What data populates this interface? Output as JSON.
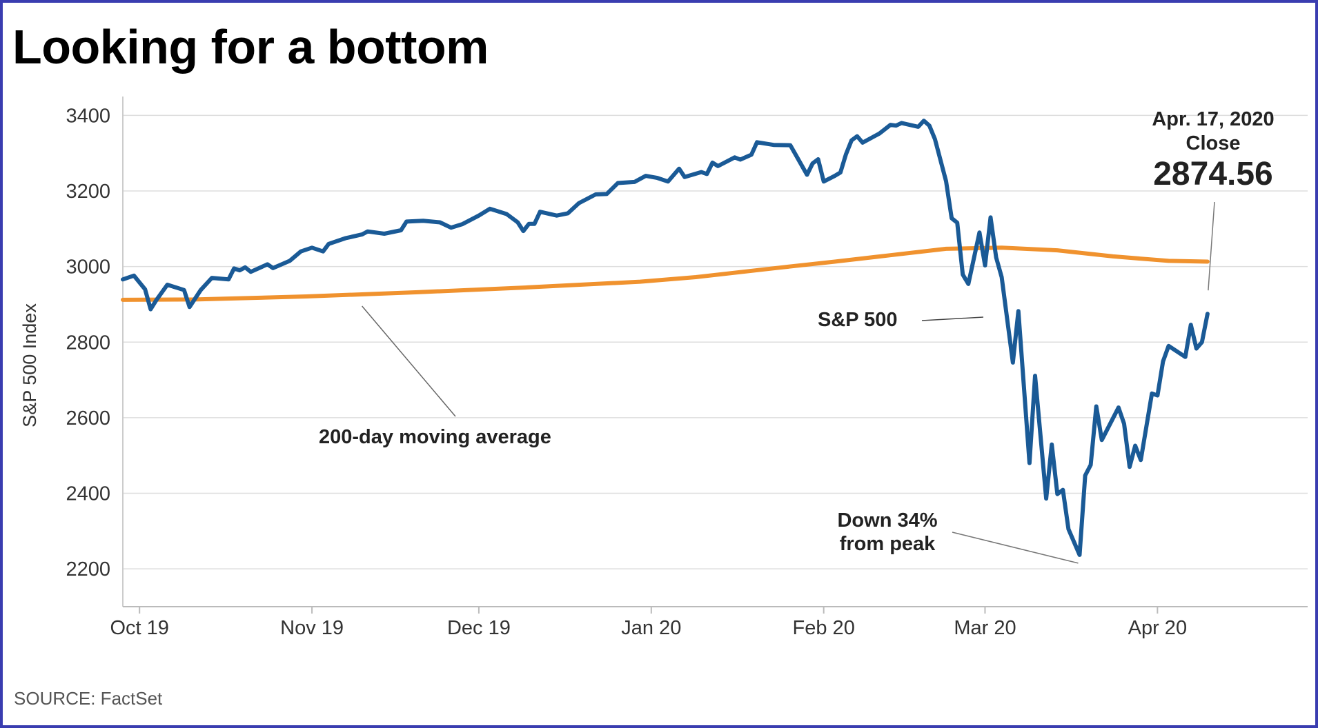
{
  "chart_data": {
    "type": "line",
    "title": "Looking for a bottom",
    "ylabel": "S&P 500 Index",
    "xlabel": "",
    "ylim": [
      2100,
      3450
    ],
    "yticks": [
      2200,
      2400,
      2600,
      2800,
      3000,
      3200,
      3400
    ],
    "x_tick_labels": [
      {
        "label": "Oct 19",
        "x": 0
      },
      {
        "label": "Nov 19",
        "x": 31
      },
      {
        "label": "Dec 19",
        "x": 61
      },
      {
        "label": "Jan 20",
        "x": 92
      },
      {
        "label": "Feb 20",
        "x": 123
      },
      {
        "label": "Mar 20",
        "x": 152
      },
      {
        "label": "Apr 20",
        "x": 183
      }
    ],
    "xlim": [
      -3,
      210
    ],
    "series": [
      {
        "name": "S&P 500",
        "color": "#1a5a96",
        "points": [
          [
            -3,
            2966
          ],
          [
            -1,
            2976
          ],
          [
            1,
            2940
          ],
          [
            2,
            2887
          ],
          [
            3,
            2911
          ],
          [
            5,
            2952
          ],
          [
            8,
            2938
          ],
          [
            9,
            2893
          ],
          [
            11,
            2938
          ],
          [
            13,
            2970
          ],
          [
            16,
            2966
          ],
          [
            17,
            2995
          ],
          [
            18,
            2990
          ],
          [
            19,
            2998
          ],
          [
            20,
            2986
          ],
          [
            23,
            3006
          ],
          [
            24,
            2996
          ],
          [
            27,
            3015
          ],
          [
            29,
            3040
          ],
          [
            31,
            3050
          ],
          [
            33,
            3040
          ],
          [
            34,
            3060
          ],
          [
            37,
            3075
          ],
          [
            40,
            3085
          ],
          [
            41,
            3093
          ],
          [
            44,
            3087
          ],
          [
            47,
            3096
          ],
          [
            48,
            3119
          ],
          [
            51,
            3121
          ],
          [
            54,
            3117
          ],
          [
            56,
            3103
          ],
          [
            58,
            3112
          ],
          [
            61,
            3135
          ],
          [
            63,
            3153
          ],
          [
            66,
            3139
          ],
          [
            68,
            3117
          ],
          [
            69,
            3094
          ],
          [
            70,
            3113
          ],
          [
            71,
            3113
          ],
          [
            72,
            3145
          ],
          [
            75,
            3135
          ],
          [
            77,
            3141
          ],
          [
            79,
            3168
          ],
          [
            82,
            3191
          ],
          [
            84,
            3192
          ],
          [
            86,
            3221
          ],
          [
            89,
            3224
          ],
          [
            91,
            3240
          ],
          [
            93,
            3235
          ],
          [
            95,
            3225
          ],
          [
            97,
            3259
          ],
          [
            98,
            3237
          ],
          [
            101,
            3250
          ],
          [
            102,
            3245
          ],
          [
            103,
            3275
          ],
          [
            104,
            3266
          ],
          [
            107,
            3289
          ],
          [
            108,
            3283
          ],
          [
            110,
            3296
          ],
          [
            111,
            3329
          ],
          [
            114,
            3322
          ],
          [
            117,
            3321
          ],
          [
            118,
            3295
          ],
          [
            120,
            3243
          ],
          [
            121,
            3273
          ],
          [
            122,
            3284
          ],
          [
            123,
            3225
          ],
          [
            125,
            3240
          ],
          [
            126,
            3249
          ],
          [
            127,
            3297
          ],
          [
            128,
            3334
          ],
          [
            129,
            3345
          ],
          [
            130,
            3328
          ],
          [
            133,
            3352
          ],
          [
            135,
            3375
          ],
          [
            136,
            3373
          ],
          [
            137,
            3380
          ],
          [
            140,
            3370
          ],
          [
            141,
            3386
          ],
          [
            142,
            3373
          ],
          [
            143,
            3337
          ],
          [
            145,
            3226
          ],
          [
            146,
            3128
          ],
          [
            147,
            3116
          ],
          [
            148,
            2979
          ],
          [
            149,
            2954
          ],
          [
            151,
            3090
          ],
          [
            152,
            3003
          ],
          [
            153,
            3130
          ],
          [
            154,
            3024
          ],
          [
            155,
            2972
          ],
          [
            157,
            2746
          ],
          [
            158,
            2882
          ],
          [
            160,
            2480
          ],
          [
            161,
            2711
          ],
          [
            163,
            2386
          ],
          [
            164,
            2529
          ],
          [
            165,
            2398
          ],
          [
            166,
            2409
          ],
          [
            167,
            2305
          ],
          [
            169,
            2237
          ],
          [
            170,
            2447
          ],
          [
            171,
            2475
          ],
          [
            172,
            2630
          ],
          [
            173,
            2541
          ],
          [
            176,
            2627
          ],
          [
            177,
            2584
          ],
          [
            178,
            2470
          ],
          [
            179,
            2526
          ],
          [
            180,
            2488
          ],
          [
            182,
            2664
          ],
          [
            183,
            2659
          ],
          [
            184,
            2749
          ],
          [
            185,
            2790
          ],
          [
            188,
            2761
          ],
          [
            189,
            2846
          ],
          [
            190,
            2783
          ],
          [
            191,
            2800
          ],
          [
            192,
            2875
          ]
        ]
      },
      {
        "name": "200-day moving average",
        "color": "#f0922e",
        "points": [
          [
            -3,
            2912
          ],
          [
            10,
            2913
          ],
          [
            30,
            2921
          ],
          [
            50,
            2932
          ],
          [
            70,
            2945
          ],
          [
            90,
            2960
          ],
          [
            100,
            2972
          ],
          [
            115,
            2997
          ],
          [
            125,
            3013
          ],
          [
            135,
            3030
          ],
          [
            145,
            3047
          ],
          [
            155,
            3050
          ],
          [
            165,
            3043
          ],
          [
            175,
            3027
          ],
          [
            185,
            3015
          ],
          [
            192,
            3013
          ]
        ]
      }
    ],
    "annotations": {
      "moving_average_label": "200-day moving average",
      "sp500_label": "S&P 500",
      "down_line1": "Down 34%",
      "down_line2": "from peak",
      "close_date": "Apr. 17, 2020",
      "close_word": "Close",
      "close_value": "2874.56"
    },
    "source": "SOURCE: FactSet"
  }
}
